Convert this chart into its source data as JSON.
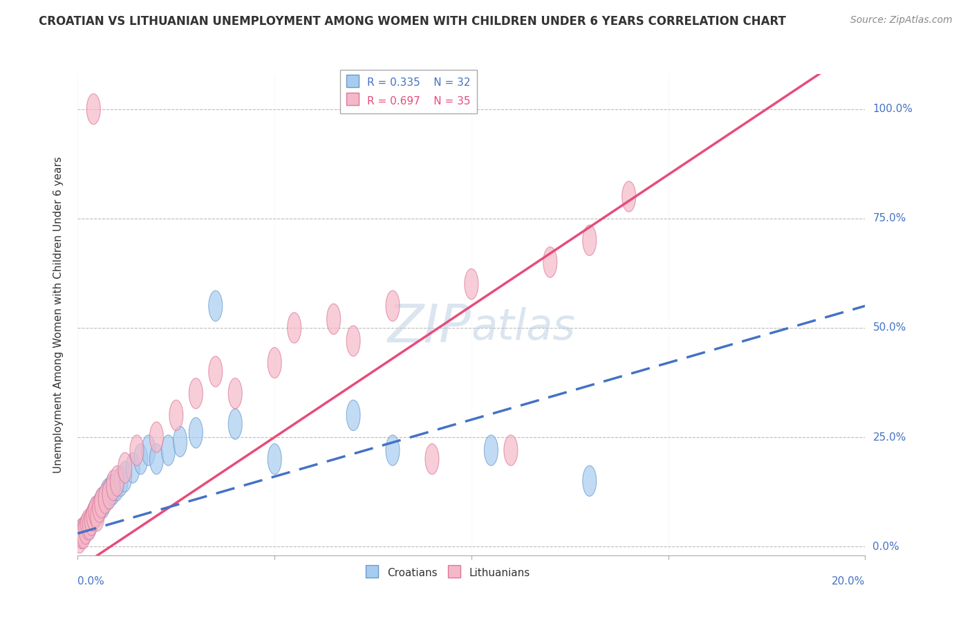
{
  "title": "CROATIAN VS LITHUANIAN UNEMPLOYMENT AMONG WOMEN WITH CHILDREN UNDER 6 YEARS CORRELATION CHART",
  "source": "Source: ZipAtlas.com",
  "ylabel": "Unemployment Among Women with Children Under 6 years",
  "ytick_values": [
    0,
    25,
    50,
    75,
    100
  ],
  "xlim": [
    0,
    20
  ],
  "ylim": [
    -2,
    108
  ],
  "legend_croatians": "Croatians",
  "legend_lithuanians": "Lithuanians",
  "r_croatians": "R = 0.335",
  "n_croatians": "N = 32",
  "r_lithuanians": "R = 0.697",
  "n_lithuanians": "N = 35",
  "croatians_color": "#A8CCF0",
  "croatians_edge": "#6699CC",
  "lithuanians_color": "#F5B8C8",
  "lithuanians_edge": "#DD7799",
  "trendline_croatians_color": "#4472C4",
  "trendline_lithuanians_color": "#E84B7A",
  "watermark_color": "#C8D8E8",
  "background_color": "#FFFFFF",
  "title_fontsize": 12,
  "source_fontsize": 10,
  "ylabel_fontsize": 11,
  "legend_fontsize": 11,
  "cr_x": [
    0.1,
    0.2,
    0.3,
    0.35,
    0.4,
    0.45,
    0.5,
    0.55,
    0.6,
    0.65,
    0.7,
    0.75,
    0.8,
    0.85,
    0.9,
    1.0,
    1.1,
    1.2,
    1.4,
    1.6,
    1.8,
    2.0,
    2.3,
    2.6,
    3.0,
    3.5,
    4.0,
    5.0,
    7.0,
    8.0,
    10.5,
    13.0
  ],
  "cr_y": [
    3,
    4,
    5,
    6,
    7,
    8,
    8,
    9,
    10,
    10,
    11,
    12,
    12,
    13,
    13,
    14,
    15,
    16,
    18,
    20,
    22,
    20,
    22,
    24,
    26,
    55,
    28,
    20,
    30,
    22,
    22,
    15
  ],
  "lt_x": [
    0.05,
    0.1,
    0.15,
    0.2,
    0.25,
    0.3,
    0.35,
    0.4,
    0.45,
    0.5,
    0.55,
    0.6,
    0.7,
    0.8,
    0.9,
    1.0,
    1.2,
    1.5,
    2.0,
    2.5,
    3.0,
    3.5,
    4.0,
    5.0,
    5.5,
    6.5,
    7.0,
    8.0,
    9.0,
    10.0,
    11.0,
    12.0,
    13.0,
    14.0,
    0.4
  ],
  "lt_y": [
    2,
    3,
    3,
    4,
    5,
    5,
    6,
    7,
    8,
    7,
    9,
    10,
    11,
    12,
    14,
    15,
    18,
    22,
    25,
    30,
    35,
    40,
    35,
    42,
    50,
    52,
    47,
    55,
    20,
    60,
    22,
    65,
    70,
    80,
    100
  ]
}
